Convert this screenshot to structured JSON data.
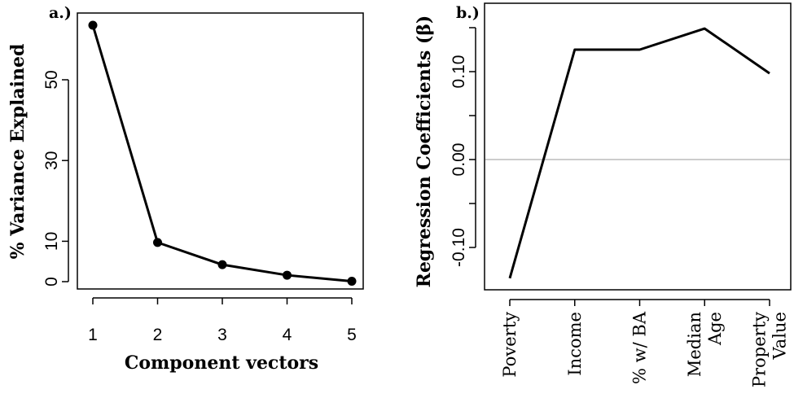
{
  "chart_data": [
    {
      "panel_label": "a.)",
      "type": "line",
      "xlabel": "Component vectors",
      "ylabel": "% Variance Explained",
      "x": [
        1,
        2,
        3,
        4,
        5
      ],
      "x_tick_labels": [
        "1",
        "2",
        "3",
        "4",
        "5"
      ],
      "y_ticks": [
        0,
        10,
        30,
        50
      ],
      "y_tick_labels": [
        "0",
        "10",
        "30",
        "50"
      ],
      "series": [
        {
          "values": [
            63.5,
            9.7,
            4.2,
            1.6,
            0.1
          ]
        }
      ],
      "markers": true,
      "ylim": [
        -1,
        65
      ],
      "xlim": [
        0.95,
        5.05
      ],
      "grid": false,
      "colors": {
        "line": "#000000",
        "marker": "#000000"
      }
    },
    {
      "panel_label": "b.)",
      "type": "line",
      "xlabel": "",
      "ylabel": "Regression Coefficients (β)",
      "categories": [
        "Poverty",
        "Income",
        "% w/ BA",
        "Median Age",
        "Property Value"
      ],
      "category_label_lines": [
        [
          "Poverty"
        ],
        [
          "Income"
        ],
        [
          "% w/ BA"
        ],
        [
          "Median",
          "Age"
        ],
        [
          "Property",
          "Value"
        ]
      ],
      "y_ticks": [
        -0.1,
        0.0,
        0.1
      ],
      "y_tick_labels": [
        "-0.10",
        "0.00",
        "0.10"
      ],
      "series": [
        {
          "values": [
            -0.135,
            0.125,
            0.125,
            0.149,
            0.098
          ]
        }
      ],
      "markers": false,
      "reference_line": {
        "y": 0.0,
        "color": "#bbbbbb"
      },
      "ylim": [
        -0.145,
        0.158
      ],
      "grid": false,
      "colors": {
        "line": "#000000"
      }
    }
  ]
}
